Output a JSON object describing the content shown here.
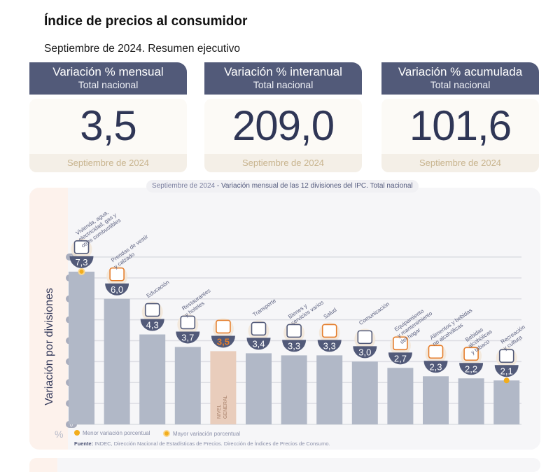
{
  "header": {
    "title": "Índice de precios al consumidor",
    "subtitle": "Septiembre de 2024. Resumen ejecutivo"
  },
  "cards": [
    {
      "title": "Variación % mensual",
      "subtitle": "Total nacional",
      "value": "3,5",
      "period": "Septiembre de 2024"
    },
    {
      "title": "Variación % interanual",
      "subtitle": "Total nacional",
      "value": "209,0",
      "period": "Septiembre de 2024"
    },
    {
      "title": "Variación % acumulada",
      "subtitle": "Total nacional",
      "value": "101,6",
      "period": "Septiembre de 2024"
    }
  ],
  "colors": {
    "header_bg": "#525a79",
    "value_text": "#2f3656",
    "bar": "#b1b8c7",
    "bar_general": "#e9cdbc",
    "bubble": "#525a79",
    "accent_orange": "#e57e2c",
    "marker": "#f2ad1c"
  },
  "chart_data": {
    "type": "bar",
    "title_period": "Septiembre de 2024",
    "title": "- Variación mensual de las 12 divisiones del IPC. Total nacional",
    "ylabel": "Variación por divisiones",
    "yunit": "%",
    "ylim": [
      0,
      8
    ],
    "yticks": [
      "0",
      "1",
      "2",
      "3",
      "4",
      "5",
      "6",
      "7",
      "8"
    ],
    "grid": true,
    "categories": [
      "Vivienda, agua, electricidad, gas y otros combustibles",
      "Prendas de vestir y calzado",
      "Educación",
      "Restaurantes y hoteles",
      "NIVEL GENERAL",
      "Transporte",
      "Bienes y servicios varios",
      "Salud",
      "Comunicación",
      "Equipamiento y mantenimiento del hogar",
      "Alimentos y bebidas no alcohólicas",
      "Bebidas alcohólicas y tabaco",
      "Recreación y cultura"
    ],
    "category_lines": [
      [
        "Vivienda, agua,",
        "electricidad, gas y",
        "otros combustibles"
      ],
      [
        "Prendas de vestir",
        "y calzado"
      ],
      [
        "Educación"
      ],
      [
        "Restaurantes",
        "y hoteles"
      ],
      [
        "NIVEL",
        "GENERAL"
      ],
      [
        "Transporte"
      ],
      [
        "Bienes y",
        "servicios varios"
      ],
      [
        "Salud"
      ],
      [
        "Comunicación"
      ],
      [
        "Equipamiento",
        "y mantenimiento",
        "del hogar"
      ],
      [
        "Alimentos y bebidas",
        "no alcohólicas"
      ],
      [
        "Bebidas",
        "alcohólicas",
        "y tabaco"
      ],
      [
        "Recreación",
        "y cultura"
      ]
    ],
    "values": [
      7.3,
      6.0,
      4.3,
      3.7,
      3.5,
      3.4,
      3.3,
      3.3,
      3.0,
      2.7,
      2.3,
      2.2,
      2.1
    ],
    "value_labels": [
      "7,3",
      "6,0",
      "4,3",
      "3,7",
      "3,5",
      "3,4",
      "3,3",
      "3,3",
      "3,0",
      "2,7",
      "2,3",
      "2,2",
      "2,1"
    ],
    "icons": [
      "tools-bulb-icon",
      "tshirt-icon",
      "notebook-icon",
      "plate-cutlery-icon",
      "shopping-basket-icon",
      "car-icon",
      "scissors-icon",
      "first-aid-icon",
      "phone-icon",
      "washing-machine-icon",
      "food-icon",
      "bottle-icon",
      "umbrella-icon"
    ],
    "general_index": 4,
    "max_index": 0,
    "min_index": 12,
    "legend": [
      {
        "label": "Menor variación porcentual",
        "marker": "min"
      },
      {
        "label": "Mayor variación porcentual",
        "marker": "max"
      }
    ],
    "source_label": "Fuente:",
    "source": "INDEC, Dirección Nacional de Estadísticas de Precios. Dirección de Índices de Precios de Consumo."
  }
}
